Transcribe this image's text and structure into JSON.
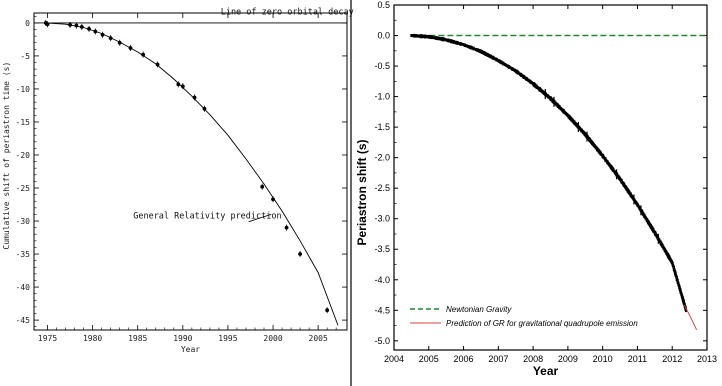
{
  "chart_data": [
    {
      "type": "scatter",
      "title": "",
      "xlabel": "Year",
      "ylabel": "Cumulative shift of periastron time (s)",
      "xlim": [
        1973.5,
        2008.2
      ],
      "ylim": [
        -46.5,
        1.5
      ],
      "x_ticks": [
        1975,
        1980,
        1985,
        1990,
        1995,
        2000,
        2005
      ],
      "x_tick_labels": [
        "1975",
        "1980",
        "1985",
        "1990",
        "1995",
        "2000",
        "2005"
      ],
      "y_ticks": [
        0,
        -5,
        -10,
        -15,
        -20,
        -25,
        -30,
        -35,
        -40,
        -45
      ],
      "y_tick_labels": [
        "0",
        "-5",
        "-10",
        "-15",
        "-20",
        "-25",
        "-30",
        "-35",
        "-40",
        "-45"
      ],
      "grid": false,
      "series": [
        {
          "name": "",
          "kind": "points",
          "x": [
            1974.8,
            1975.0,
            1977.5,
            1978.2,
            1978.8,
            1979.6,
            1980.3,
            1981.1,
            1982.0,
            1983.0,
            1984.2,
            1985.6,
            1987.2,
            1989.5,
            1990.0,
            1991.3,
            1992.4,
            1998.8,
            2000.0,
            2001.5,
            2003.0,
            2006.0
          ],
          "y": [
            0.0,
            -0.2,
            -0.3,
            -0.4,
            -0.6,
            -0.9,
            -1.3,
            -1.8,
            -2.3,
            -3.0,
            -3.8,
            -4.8,
            -6.3,
            -9.3,
            -9.6,
            -11.3,
            -13.0,
            -24.8,
            -26.7,
            -31.0,
            -35.0,
            -43.5
          ]
        },
        {
          "name": "General Relativity prediction",
          "kind": "curve",
          "x": [
            1974.8,
            1977,
            1979,
            1981,
            1983,
            1985,
            1987,
            1989,
            1991,
            1993,
            1995,
            1997,
            1999,
            2001,
            2003,
            2005,
            2007.2
          ],
          "y": [
            0.0,
            -0.2,
            -0.7,
            -1.6,
            -2.9,
            -4.4,
            -6.2,
            -8.5,
            -11.1,
            -13.9,
            -17.0,
            -20.6,
            -24.4,
            -28.5,
            -33.0,
            -37.8,
            -45.8
          ]
        },
        {
          "name": "Line of zero orbital decay",
          "kind": "hline",
          "y": 0
        }
      ],
      "annotations": [
        {
          "text": "Line of zero orbital decay",
          "at_year": 1994.2,
          "at_value": 1.3
        },
        {
          "text": "General Relativity prediction",
          "at_year": 1984.5,
          "at_value": -29.6
        }
      ]
    },
    {
      "type": "scatter",
      "title": "",
      "xlabel": "Year",
      "ylabel": "Periastron shift (s)",
      "xlim": [
        2004,
        2013
      ],
      "ylim": [
        -5.15,
        0.5
      ],
      "x_ticks": [
        2004,
        2005,
        2006,
        2007,
        2008,
        2009,
        2010,
        2011,
        2012,
        2013
      ],
      "x_tick_labels": [
        "2004",
        "2005",
        "2006",
        "2007",
        "2008",
        "2009",
        "2010",
        "2011",
        "2012",
        "2013"
      ],
      "y_ticks": [
        0.5,
        0.0,
        -0.5,
        -1.0,
        -1.5,
        -2.0,
        -2.5,
        -3.0,
        -3.5,
        -4.0,
        -4.5,
        -5.0
      ],
      "y_tick_labels": [
        "0.5",
        "0.0",
        "-0.5",
        "-1.0",
        "-1.5",
        "-2.0",
        "-2.5",
        "-3.0",
        "-3.5",
        "-4.0",
        "-4.5",
        "-5.0"
      ],
      "grid": false,
      "legend": "bottom-left",
      "series": [
        {
          "name": "Newtonian Gravity",
          "kind": "hline",
          "y": 0.0,
          "color": "#1a8a2e"
        },
        {
          "name": "Prediction of GR for gravitational quadrupole emission",
          "kind": "curve",
          "color": "#d94040",
          "x": [
            2012.35,
            2012.5,
            2012.7
          ],
          "y": [
            -4.42,
            -4.58,
            -4.82
          ]
        },
        {
          "name": "",
          "kind": "dense-points",
          "color": "#000000",
          "x": [
            2004.5,
            2005.0,
            2005.5,
            2006.0,
            2006.5,
            2007.0,
            2007.5,
            2008.0,
            2008.5,
            2009.0,
            2009.5,
            2010.0,
            2010.5,
            2011.0,
            2011.5,
            2012.0,
            2012.4
          ],
          "y": [
            0.0,
            -0.02,
            -0.07,
            -0.15,
            -0.26,
            -0.41,
            -0.58,
            -0.79,
            -1.03,
            -1.31,
            -1.62,
            -1.97,
            -2.35,
            -2.77,
            -3.23,
            -3.72,
            -4.5
          ]
        }
      ]
    }
  ]
}
